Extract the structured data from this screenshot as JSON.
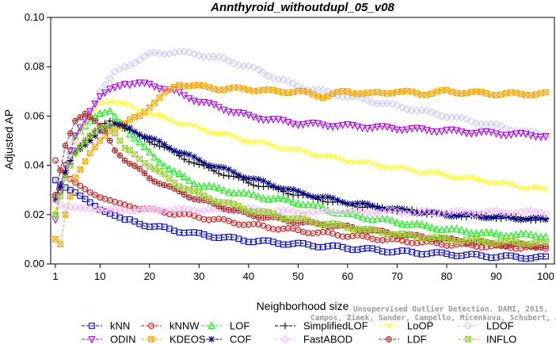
{
  "chart_data": {
    "type": "line",
    "title": "Annthyroid_withoutdupl_05_v08",
    "xlabel": "Neighborhood size",
    "ylabel": "Adjusted AP",
    "xlim": [
      1,
      100
    ],
    "ylim": [
      0.0,
      0.1
    ],
    "xticks": [
      "1",
      "10",
      "20",
      "30",
      "40",
      "50",
      "60",
      "70",
      "80",
      "90",
      "100"
    ],
    "yticks": [
      "0.00",
      "0.02",
      "0.04",
      "0.06",
      "0.08",
      "0.10"
    ],
    "grid": false,
    "legend_position": "bottom",
    "watermark": [
      "Unsupervised Outlier Detection. DAMI, 2015.",
      "Campos, Zimek, Sander, Campello, Micenkova, Schubert, Assent, Houle"
    ],
    "series": [
      {
        "name": "kNN",
        "color": "#0000ff",
        "marker": "square",
        "points": [
          [
            1,
            0.034
          ],
          [
            2,
            0.032
          ],
          [
            3,
            0.031
          ],
          [
            5,
            0.029
          ],
          [
            8,
            0.025
          ],
          [
            10,
            0.022
          ],
          [
            15,
            0.018
          ],
          [
            20,
            0.0155
          ],
          [
            30,
            0.012
          ],
          [
            40,
            0.0095
          ],
          [
            50,
            0.008
          ],
          [
            60,
            0.0065
          ],
          [
            70,
            0.005
          ],
          [
            80,
            0.004
          ],
          [
            90,
            0.003
          ],
          [
            100,
            0.0025
          ]
        ]
      },
      {
        "name": "kNNW",
        "color": "#ff0000",
        "marker": "circle",
        "points": [
          [
            1,
            0.042
          ],
          [
            2,
            0.038
          ],
          [
            3,
            0.036
          ],
          [
            5,
            0.033
          ],
          [
            8,
            0.029
          ],
          [
            10,
            0.027
          ],
          [
            15,
            0.024
          ],
          [
            20,
            0.022
          ],
          [
            30,
            0.019
          ],
          [
            40,
            0.016
          ],
          [
            50,
            0.0135
          ],
          [
            60,
            0.0115
          ],
          [
            70,
            0.0095
          ],
          [
            80,
            0.008
          ],
          [
            90,
            0.007
          ],
          [
            100,
            0.0065
          ]
        ]
      },
      {
        "name": "LOF",
        "color": "#00ff00",
        "marker": "triangle-up",
        "points": [
          [
            1,
            0.02
          ],
          [
            3,
            0.04
          ],
          [
            5,
            0.052
          ],
          [
            8,
            0.058
          ],
          [
            10,
            0.061
          ],
          [
            12,
            0.062
          ],
          [
            15,
            0.055
          ],
          [
            20,
            0.045
          ],
          [
            25,
            0.037
          ],
          [
            30,
            0.032
          ],
          [
            40,
            0.028
          ],
          [
            50,
            0.025
          ],
          [
            60,
            0.02
          ],
          [
            70,
            0.017
          ],
          [
            80,
            0.014
          ],
          [
            90,
            0.012
          ],
          [
            100,
            0.0115
          ]
        ]
      },
      {
        "name": "SimplifiedLOF",
        "color": "#000000",
        "marker": "plus",
        "points": [
          [
            1,
            0.027
          ],
          [
            3,
            0.038
          ],
          [
            5,
            0.046
          ],
          [
            8,
            0.052
          ],
          [
            10,
            0.056
          ],
          [
            12,
            0.058
          ],
          [
            15,
            0.055
          ],
          [
            20,
            0.05
          ],
          [
            30,
            0.04
          ],
          [
            40,
            0.033
          ],
          [
            50,
            0.028
          ],
          [
            60,
            0.024
          ],
          [
            70,
            0.022
          ],
          [
            80,
            0.02
          ],
          [
            90,
            0.019
          ],
          [
            100,
            0.018
          ]
        ]
      },
      {
        "name": "LoOP",
        "color": "#ffff00",
        "marker": "x",
        "points": [
          [
            1,
            0.022
          ],
          [
            3,
            0.04
          ],
          [
            5,
            0.05
          ],
          [
            8,
            0.06
          ],
          [
            10,
            0.065
          ],
          [
            12,
            0.066
          ],
          [
            15,
            0.065
          ],
          [
            20,
            0.061
          ],
          [
            30,
            0.055
          ],
          [
            40,
            0.05
          ],
          [
            50,
            0.046
          ],
          [
            60,
            0.042
          ],
          [
            70,
            0.039
          ],
          [
            80,
            0.036
          ],
          [
            90,
            0.033
          ],
          [
            100,
            0.03
          ]
        ]
      },
      {
        "name": "LDOF",
        "color": "#c8c8ff",
        "marker": "diamond",
        "points": [
          [
            1,
            0.028
          ],
          [
            5,
            0.05
          ],
          [
            8,
            0.062
          ],
          [
            10,
            0.07
          ],
          [
            13,
            0.078
          ],
          [
            16,
            0.081
          ],
          [
            20,
            0.085
          ],
          [
            25,
            0.086
          ],
          [
            30,
            0.085
          ],
          [
            35,
            0.083
          ],
          [
            40,
            0.08
          ],
          [
            45,
            0.076
          ],
          [
            50,
            0.072
          ],
          [
            55,
            0.07
          ],
          [
            60,
            0.068
          ],
          [
            65,
            0.066
          ],
          [
            70,
            0.064
          ],
          [
            80,
            0.06
          ],
          [
            90,
            0.056
          ],
          [
            100,
            0.052
          ]
        ]
      },
      {
        "name": "ODIN",
        "color": "#aa00ff",
        "marker": "triangle-down",
        "points": [
          [
            1,
            0.018
          ],
          [
            3,
            0.04
          ],
          [
            5,
            0.052
          ],
          [
            8,
            0.062
          ],
          [
            10,
            0.068
          ],
          [
            12,
            0.071
          ],
          [
            15,
            0.073
          ],
          [
            20,
            0.073
          ],
          [
            25,
            0.07
          ],
          [
            30,
            0.066
          ],
          [
            40,
            0.06
          ],
          [
            50,
            0.057
          ],
          [
            60,
            0.056
          ],
          [
            70,
            0.055
          ],
          [
            80,
            0.054
          ],
          [
            90,
            0.053
          ],
          [
            100,
            0.052
          ]
        ]
      },
      {
        "name": "KDEOS",
        "color": "#ffa500",
        "marker": "square-x",
        "points": [
          [
            1,
            0.01
          ],
          [
            2,
            0.008
          ],
          [
            3,
            0.02
          ],
          [
            5,
            0.035
          ],
          [
            8,
            0.045
          ],
          [
            10,
            0.05
          ],
          [
            12,
            0.054
          ],
          [
            15,
            0.057
          ],
          [
            18,
            0.06
          ],
          [
            20,
            0.064
          ],
          [
            23,
            0.069
          ],
          [
            26,
            0.073
          ],
          [
            30,
            0.072
          ],
          [
            35,
            0.071
          ],
          [
            40,
            0.071
          ],
          [
            45,
            0.07
          ],
          [
            50,
            0.07
          ],
          [
            55,
            0.068
          ],
          [
            60,
            0.07
          ],
          [
            65,
            0.069
          ],
          [
            70,
            0.07
          ],
          [
            75,
            0.069
          ],
          [
            80,
            0.07
          ],
          [
            90,
            0.069
          ],
          [
            100,
            0.069
          ]
        ]
      },
      {
        "name": "COF",
        "color": "#000080",
        "marker": "star",
        "points": [
          [
            1,
            0.026
          ],
          [
            3,
            0.037
          ],
          [
            5,
            0.045
          ],
          [
            8,
            0.05
          ],
          [
            10,
            0.054
          ],
          [
            13,
            0.057
          ],
          [
            15,
            0.056
          ],
          [
            20,
            0.051
          ],
          [
            30,
            0.042
          ],
          [
            40,
            0.035
          ],
          [
            50,
            0.029
          ],
          [
            60,
            0.025
          ],
          [
            70,
            0.022
          ],
          [
            80,
            0.02
          ],
          [
            90,
            0.019
          ],
          [
            100,
            0.018
          ]
        ]
      },
      {
        "name": "FastABOD",
        "color": "#ffb4ff",
        "marker": "diamond",
        "points": [
          [
            1,
            0.026
          ],
          [
            2,
            0.024
          ],
          [
            3,
            0.023
          ],
          [
            5,
            0.023
          ],
          [
            10,
            0.022
          ],
          [
            20,
            0.022
          ],
          [
            30,
            0.022
          ],
          [
            40,
            0.022
          ],
          [
            50,
            0.021
          ],
          [
            60,
            0.021
          ],
          [
            70,
            0.021
          ],
          [
            80,
            0.021
          ],
          [
            90,
            0.021
          ],
          [
            100,
            0.021
          ]
        ]
      },
      {
        "name": "LDF",
        "color": "#b22222",
        "marker": "circle-plus",
        "points": [
          [
            1,
            0.028
          ],
          [
            3,
            0.048
          ],
          [
            5,
            0.058
          ],
          [
            7,
            0.061
          ],
          [
            9,
            0.058
          ],
          [
            11,
            0.054
          ],
          [
            13,
            0.046
          ],
          [
            15,
            0.042
          ],
          [
            18,
            0.038
          ],
          [
            20,
            0.035
          ],
          [
            25,
            0.03
          ],
          [
            30,
            0.026
          ],
          [
            40,
            0.02
          ],
          [
            50,
            0.017
          ],
          [
            60,
            0.015
          ],
          [
            70,
            0.012
          ],
          [
            80,
            0.01
          ],
          [
            90,
            0.008
          ],
          [
            100,
            0.007
          ]
        ]
      },
      {
        "name": "INFLO",
        "color": "#9acd32",
        "marker": "hourglass",
        "points": [
          [
            1,
            0.02
          ],
          [
            3,
            0.035
          ],
          [
            5,
            0.045
          ],
          [
            8,
            0.052
          ],
          [
            10,
            0.055
          ],
          [
            12,
            0.056
          ],
          [
            15,
            0.047
          ],
          [
            20,
            0.04
          ],
          [
            25,
            0.033
          ],
          [
            30,
            0.028
          ],
          [
            40,
            0.022
          ],
          [
            50,
            0.018
          ],
          [
            60,
            0.015
          ],
          [
            70,
            0.012
          ],
          [
            80,
            0.01
          ],
          [
            90,
            0.009
          ],
          [
            100,
            0.0085
          ]
        ]
      }
    ]
  }
}
